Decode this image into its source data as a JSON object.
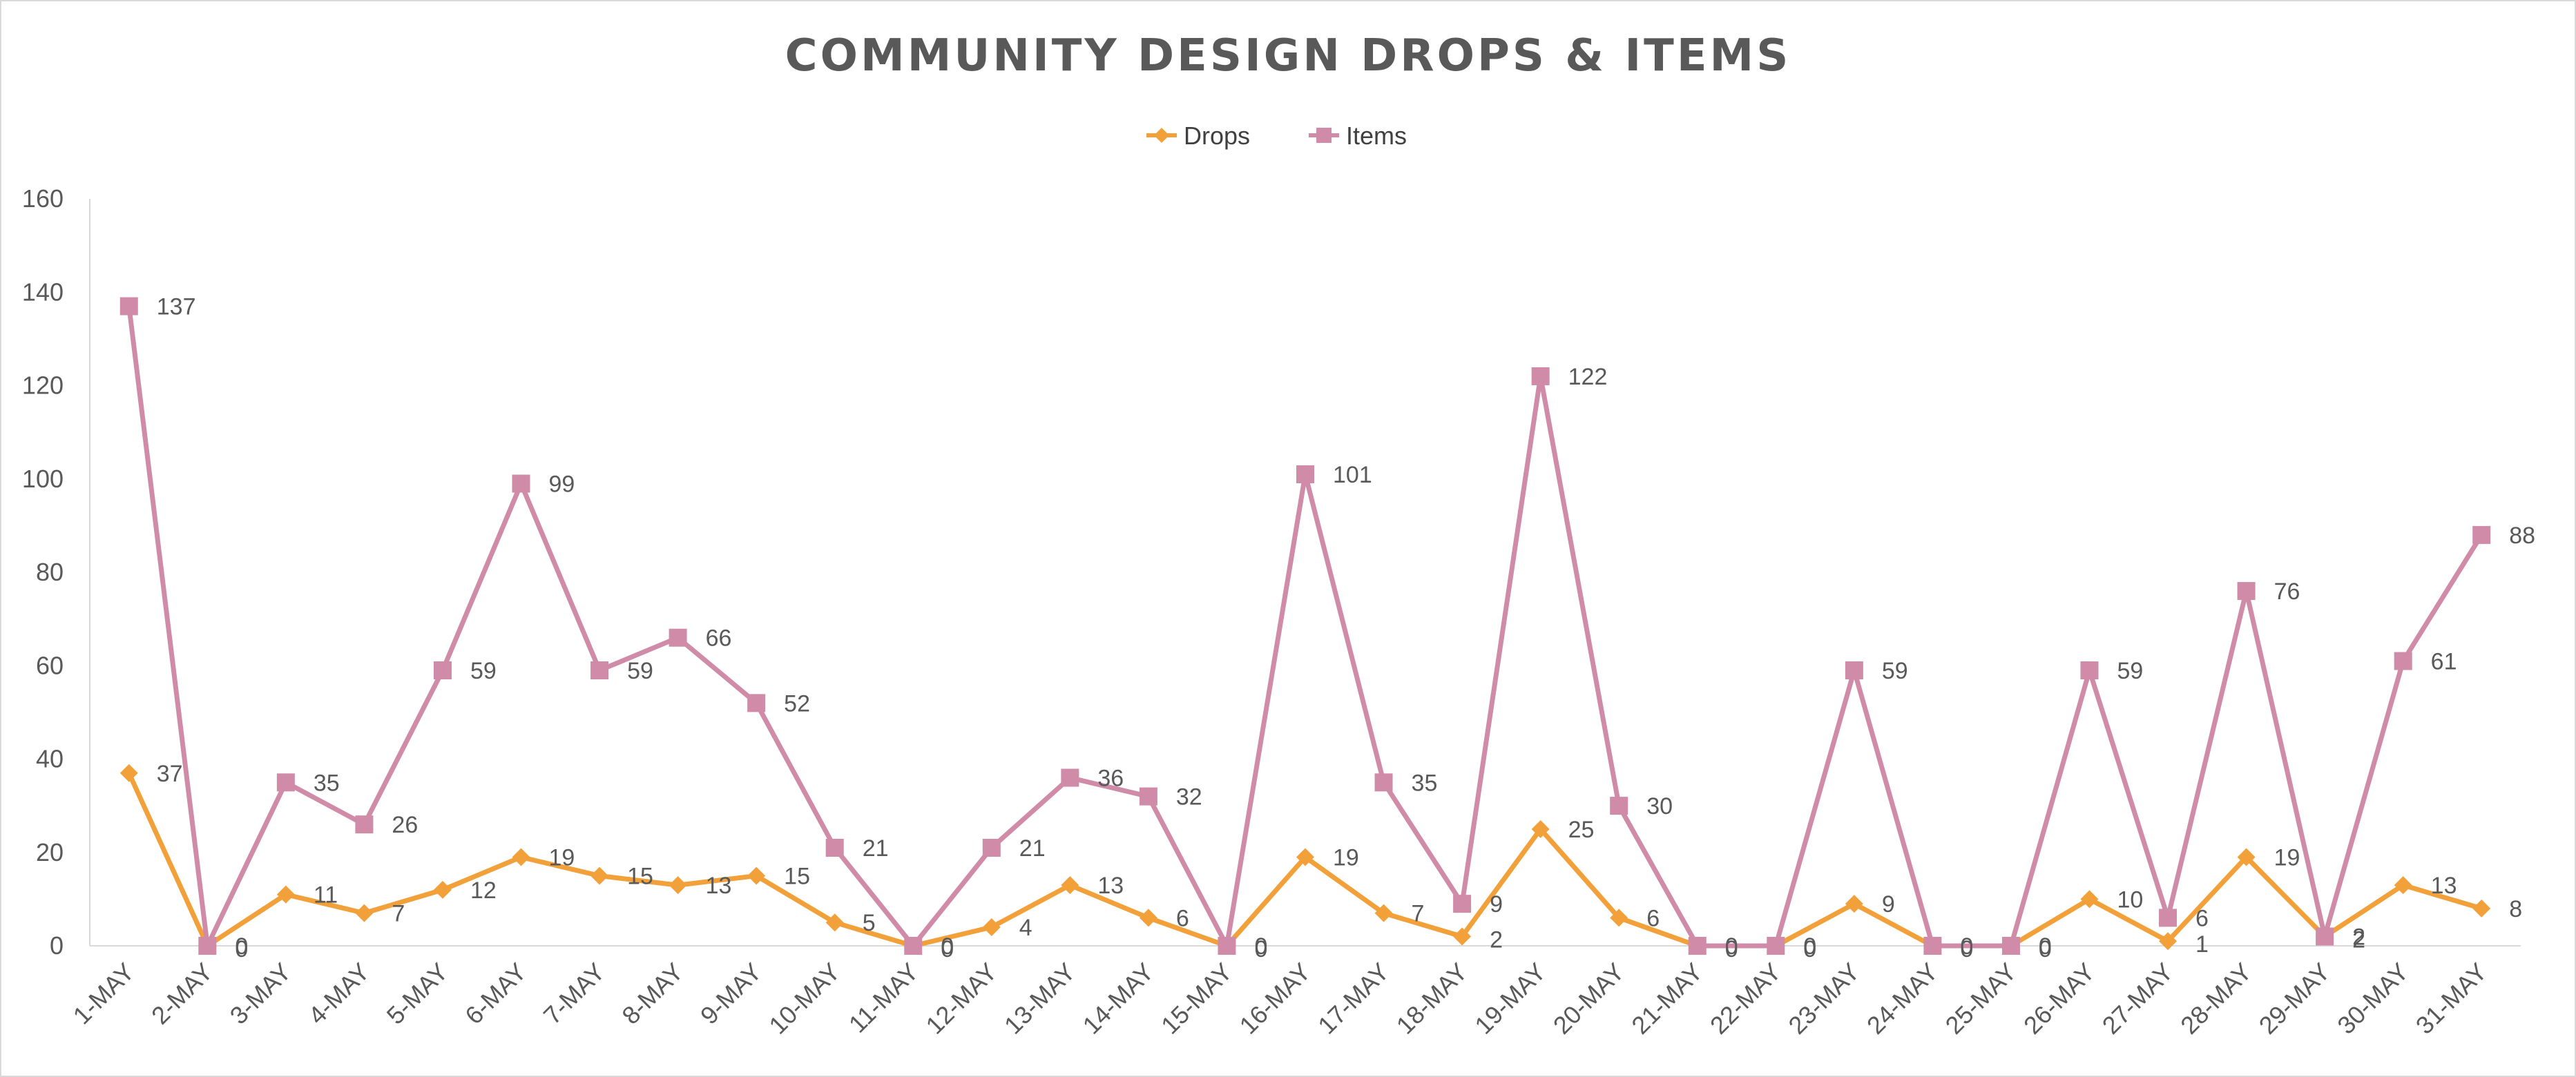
{
  "chart_data": {
    "type": "line",
    "title": "COMMUNITY DESIGN DROPS & ITEMS",
    "categories": [
      "1-MAY",
      "2-MAY",
      "3-MAY",
      "4-MAY",
      "5-MAY",
      "6-MAY",
      "7-MAY",
      "8-MAY",
      "9-MAY",
      "10-MAY",
      "11-MAY",
      "12-MAY",
      "13-MAY",
      "14-MAY",
      "15-MAY",
      "16-MAY",
      "17-MAY",
      "18-MAY",
      "19-MAY",
      "20-MAY",
      "21-MAY",
      "22-MAY",
      "23-MAY",
      "24-MAY",
      "25-MAY",
      "26-MAY",
      "27-MAY",
      "28-MAY",
      "29-MAY",
      "30-MAY",
      "31-MAY"
    ],
    "series": [
      {
        "name": "Drops",
        "color": "#F2A13A",
        "marker": "diamond",
        "values": [
          37,
          0,
          11,
          7,
          12,
          19,
          15,
          13,
          15,
          5,
          0,
          4,
          13,
          6,
          0,
          19,
          7,
          2,
          25,
          6,
          0,
          0,
          9,
          0,
          0,
          10,
          1,
          19,
          2,
          13,
          8
        ]
      },
      {
        "name": "Items",
        "color": "#CF8BA8",
        "marker": "square",
        "values": [
          137,
          0,
          35,
          26,
          59,
          99,
          59,
          66,
          52,
          21,
          0,
          21,
          36,
          32,
          0,
          101,
          35,
          9,
          122,
          30,
          0,
          0,
          59,
          0,
          0,
          59,
          6,
          76,
          2,
          61,
          88
        ]
      }
    ],
    "ylim": [
      0,
      160
    ],
    "yticks": [
      0,
      20,
      40,
      60,
      80,
      100,
      120,
      140,
      160
    ],
    "legend_position": "top",
    "grid": false,
    "data_labels": true
  }
}
